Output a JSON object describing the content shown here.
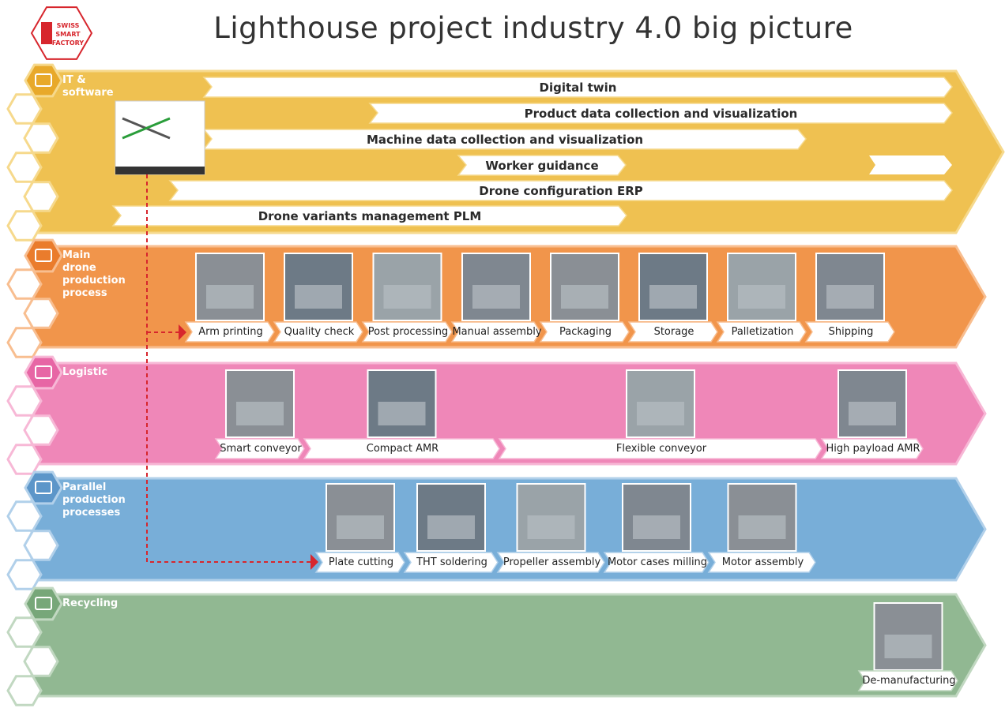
{
  "header": {
    "title": "Lighthouse project industry 4.0 big picture",
    "logo": [
      "SWISS",
      "SMART",
      "FACTORY"
    ]
  },
  "lanes": [
    {
      "label": "IT & software",
      "items": [
        "Digital twin",
        "Product data collection and visualization",
        "Machine data collection and visualization",
        "Worker guidance",
        "Drone configuration ERP",
        "Drone variants management PLM"
      ]
    },
    {
      "label": "Main drone production process",
      "items": [
        "Arm printing",
        "Quality check",
        "Post processing",
        "Manual assembly",
        "Packaging",
        "Storage",
        "Palletization",
        "Shipping"
      ]
    },
    {
      "label": "Logistic",
      "items": [
        "Smart conveyor",
        "Compact AMR",
        "Flexible conveyor",
        "High payload AMR"
      ]
    },
    {
      "label": "Parallel production processes",
      "items": [
        "Plate cutting",
        "THT soldering",
        "Propeller assembly",
        "Motor cases milling",
        "Motor assembly"
      ]
    },
    {
      "label": "Recycling",
      "items": [
        "De-manufacturing"
      ]
    }
  ]
}
